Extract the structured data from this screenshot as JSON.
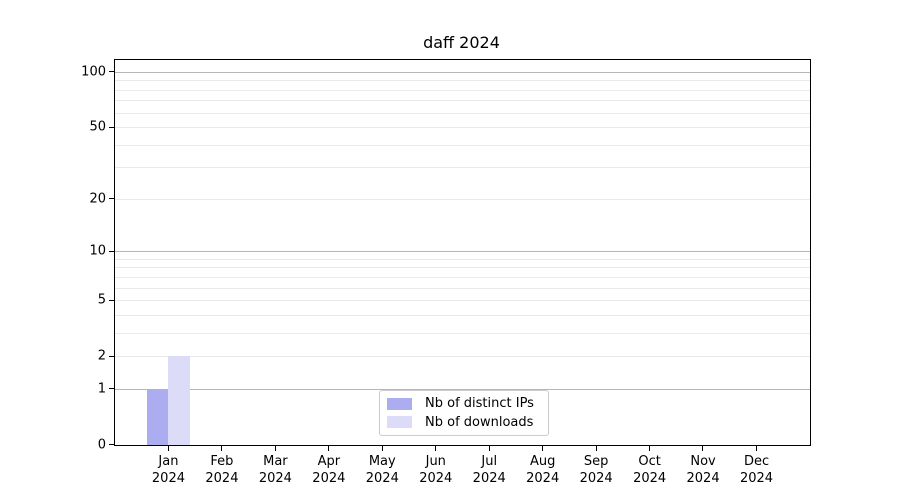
{
  "title": "daff 2024",
  "chart_data": {
    "type": "bar",
    "categories": [
      "Jan",
      "Feb",
      "Mar",
      "Apr",
      "May",
      "Jun",
      "Jul",
      "Aug",
      "Sep",
      "Oct",
      "Nov",
      "Dec"
    ],
    "category_year": "2024",
    "series": [
      {
        "name": "Nb of distinct IPs",
        "color": "#acacf0",
        "values": [
          1,
          0,
          0,
          0,
          0,
          0,
          0,
          0,
          0,
          0,
          0,
          0
        ]
      },
      {
        "name": "Nb of downloads",
        "color": "#dcdcf8",
        "values": [
          2,
          0,
          0,
          0,
          0,
          0,
          0,
          0,
          0,
          0,
          0,
          0
        ]
      }
    ],
    "title": "daff 2024",
    "xlabel": "",
    "ylabel": "",
    "y_axis": {
      "scale": "log1p",
      "min": 0,
      "max": 116,
      "tick_values": [
        0,
        1,
        2,
        5,
        10,
        20,
        50,
        100
      ],
      "tick_labels": [
        "0",
        "1",
        "2",
        "5",
        "10",
        "20",
        "50",
        "100"
      ],
      "major_grid": [
        1,
        10,
        100
      ],
      "minor_grid": [
        2,
        3,
        4,
        5,
        6,
        7,
        8,
        9,
        20,
        30,
        40,
        50,
        60,
        70,
        80,
        90
      ]
    },
    "grid": true,
    "legend_position": "lower center"
  }
}
